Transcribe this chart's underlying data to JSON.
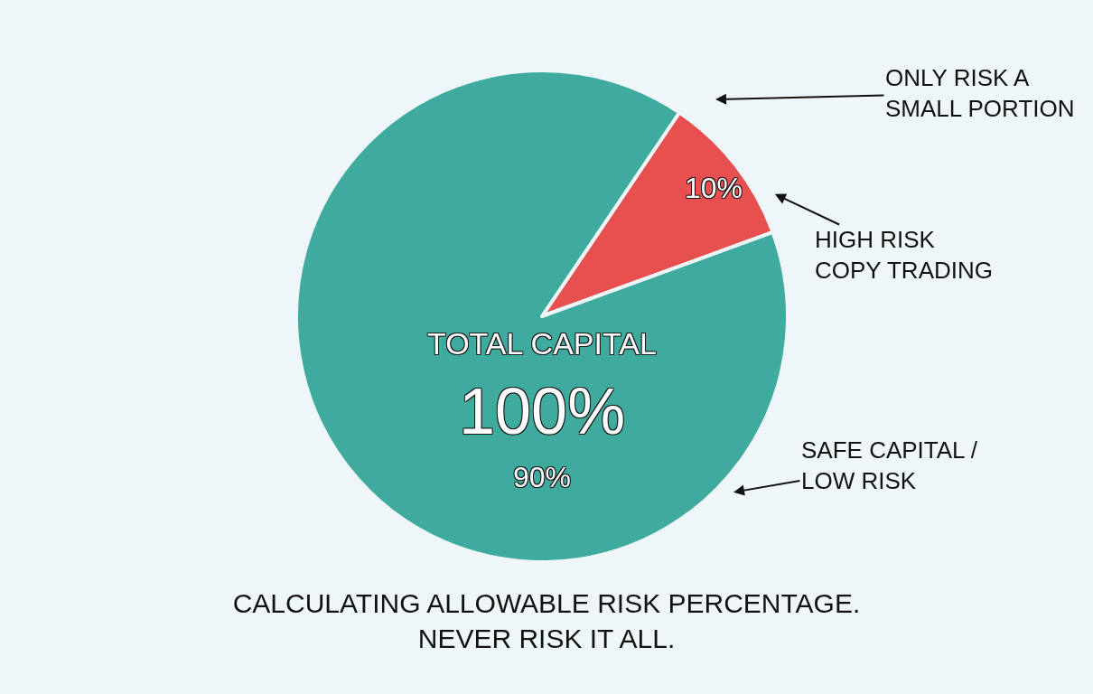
{
  "chart_data": {
    "type": "pie",
    "title": "CALCULATING ALLOWABLE RISK PERCENTAGE.\nNEVER RISK IT ALL.",
    "categories": [
      "HIGH RISK\nCOPY TRADING",
      "SAFE CAPITAL /\nLOW RISK"
    ],
    "values": [
      10,
      90
    ],
    "value_labels": [
      "10%",
      "90%"
    ],
    "colors": [
      "#e8504f",
      "#3fab9f"
    ],
    "annotations": [
      "TOTAL CAPITAL",
      "100%",
      "ONLY RISK A\nSMALL PORTION"
    ],
    "legend": false
  }
}
